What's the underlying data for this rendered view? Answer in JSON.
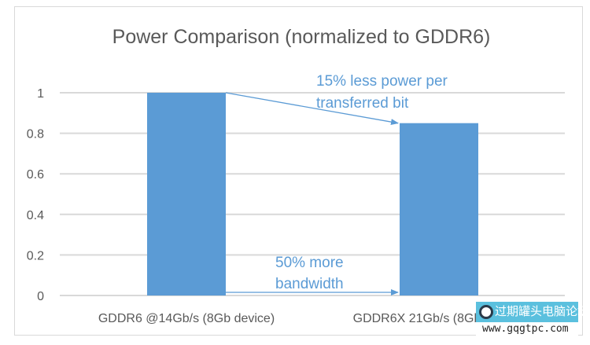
{
  "chart_data": {
    "type": "bar",
    "title": "Power Comparison (normalized to GDDR6)",
    "categories": [
      "GDDR6 @14Gb/s (8Gb device)",
      "GDDR6X 21Gb/s (8Gb device)"
    ],
    "values": [
      1,
      0.85
    ],
    "ylim": [
      0,
      1
    ],
    "yticks": [
      0,
      0.2,
      0.4,
      0.6,
      0.8,
      1
    ],
    "ytick_labels": [
      "0",
      "0.2",
      "0.4",
      "0.6",
      "0.8",
      "1"
    ],
    "grid": true,
    "bar_color": "#5b9bd5",
    "annotations": [
      {
        "lines": [
          "15% less power per",
          "transferred bit"
        ],
        "from": "GDDR6 top",
        "to": "GDDR6X top"
      },
      {
        "lines": [
          "50% more",
          "bandwidth"
        ],
        "from": "GDDR6 base",
        "to": "GDDR6X base"
      }
    ],
    "annotation_color": "#5b9bd5"
  },
  "watermark": {
    "name": "过期罐头电脑论坛",
    "url": "www.gqgtpc.com"
  }
}
